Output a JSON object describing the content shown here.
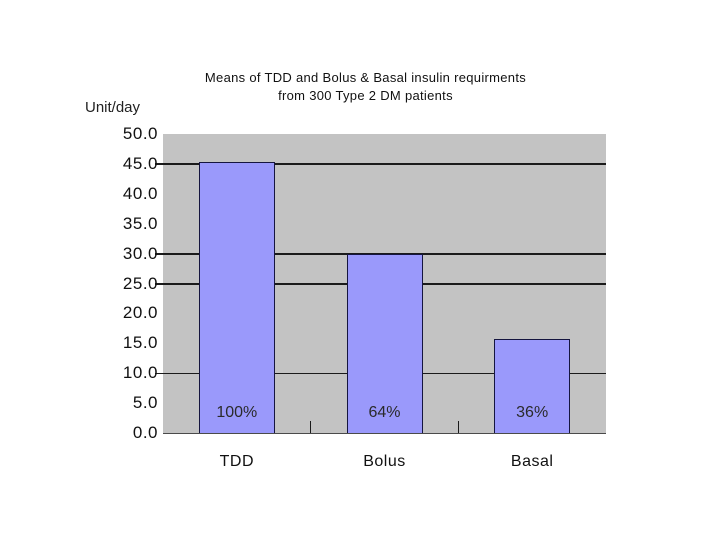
{
  "page": {
    "background_color": "#ffffff"
  },
  "chart_data": {
    "type": "bar",
    "title_line1": "Means of TDD and Bolus & Basal insulin requirments",
    "title_line2": "from 300 Type 2 DM patients",
    "unit_label": "Unit/day",
    "categories": [
      "TDD",
      "Bolus",
      "Basal"
    ],
    "values": [
      45.3,
      30.0,
      15.8
    ],
    "bar_labels": [
      "100%",
      "64%",
      "36%"
    ],
    "y_tick_labels": [
      "50.0",
      "45.0",
      "40.0",
      "35.0",
      "30.0",
      "25.0",
      "20.0",
      "15.0",
      "10.0",
      "5.0",
      "0.0"
    ],
    "y_tick_values": [
      50,
      45,
      40,
      35,
      30,
      25,
      20,
      15,
      10,
      5,
      0
    ],
    "ylim": [
      0,
      50
    ],
    "gridline_values": [
      45,
      30,
      25,
      10
    ],
    "legend": "none",
    "grid": "partial-horizontal-lines",
    "colors": {
      "bar_fill": "#9a99fb",
      "bar_border": "#15153f",
      "plot_background": "#c3c3c3",
      "text": "#1a1a1a",
      "page_background": "#ffffff"
    }
  }
}
